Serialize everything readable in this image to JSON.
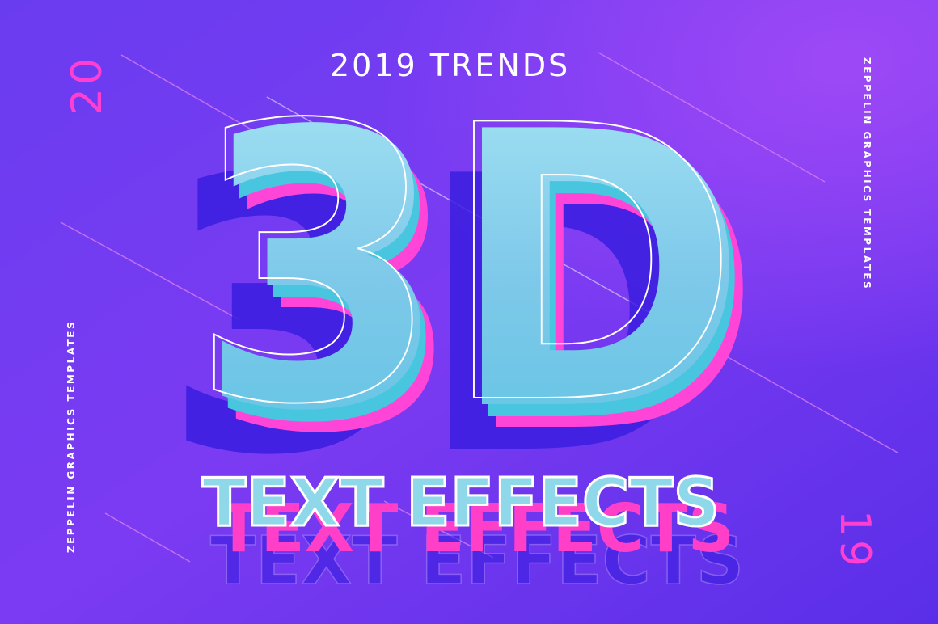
{
  "header": {
    "title": "2019 TRENDS"
  },
  "headline": "3D",
  "subheadline": "TEXT EFFECTS",
  "year": {
    "left": "20",
    "right": "19"
  },
  "side_text": {
    "left": "ZEPPELIN GRAPHICS TEMPLATES",
    "right": "ZEPPELIN GRAPHICS TEMPLATES"
  }
}
